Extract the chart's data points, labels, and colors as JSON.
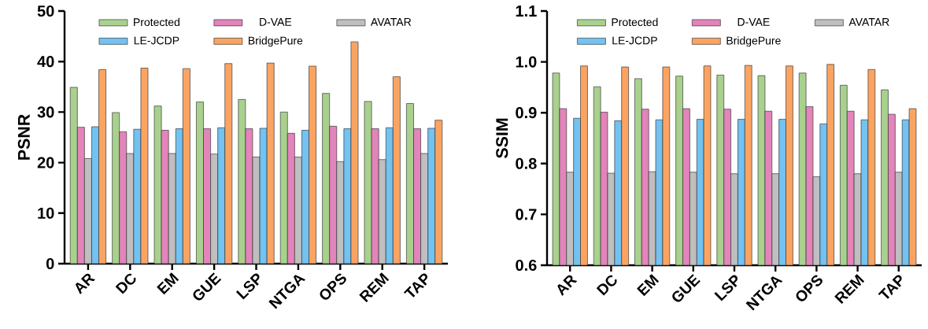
{
  "chart_data": [
    {
      "type": "bar",
      "ylabel": "PSNR",
      "categories": [
        "AR",
        "DC",
        "EM",
        "GUE",
        "LSP",
        "NTGA",
        "OPS",
        "REM",
        "TAP"
      ],
      "ylim": [
        0,
        50
      ],
      "yticks": [
        0,
        10,
        20,
        30,
        40,
        50
      ],
      "legend": "top",
      "series": [
        {
          "name": "Protected",
          "color": "#a9d18e",
          "values": [
            34.9,
            29.9,
            31.2,
            32.0,
            32.5,
            30.0,
            33.7,
            32.1,
            31.7
          ]
        },
        {
          "name": "D-VAE",
          "color": "#e384bb",
          "values": [
            27.0,
            26.1,
            26.4,
            26.7,
            26.7,
            25.8,
            27.2,
            26.7,
            26.7
          ]
        },
        {
          "name": "AVATAR",
          "color": "#bfbfbf",
          "values": [
            20.8,
            21.8,
            21.8,
            21.7,
            21.1,
            21.1,
            20.2,
            20.6,
            21.8
          ]
        },
        {
          "name": "LE-JCDP",
          "color": "#72c2f2",
          "values": [
            27.1,
            26.6,
            26.7,
            26.9,
            26.8,
            26.4,
            26.7,
            26.9,
            26.8
          ]
        },
        {
          "name": "BridgePure",
          "color": "#fba462",
          "values": [
            38.4,
            38.7,
            38.6,
            39.6,
            39.7,
            39.1,
            43.9,
            37.0,
            28.4
          ]
        }
      ]
    },
    {
      "type": "bar",
      "ylabel": "SSIM",
      "categories": [
        "AR",
        "DC",
        "EM",
        "GUE",
        "LSP",
        "NTGA",
        "OPS",
        "REM",
        "TAP"
      ],
      "ylim": [
        0.6,
        1.1
      ],
      "yticks": [
        0.6,
        0.7,
        0.8,
        0.9,
        {
          "value": 1.0,
          "label": "1.0"
        },
        1.1
      ],
      "legend": "top",
      "series": [
        {
          "name": "Protected",
          "color": "#a9d18e",
          "values": [
            0.978,
            0.951,
            0.967,
            0.972,
            0.974,
            0.973,
            0.978,
            0.954,
            0.945
          ]
        },
        {
          "name": "D-VAE",
          "color": "#e384bb",
          "values": [
            0.908,
            0.901,
            0.907,
            0.908,
            0.907,
            0.903,
            0.912,
            0.903,
            0.897
          ]
        },
        {
          "name": "AVATAR",
          "color": "#bfbfbf",
          "values": [
            0.783,
            0.781,
            0.784,
            0.783,
            0.78,
            0.78,
            0.774,
            0.78,
            0.783
          ]
        },
        {
          "name": "LE-JCDP",
          "color": "#72c2f2",
          "values": [
            0.889,
            0.884,
            0.886,
            0.887,
            0.887,
            0.887,
            0.878,
            0.886,
            0.886
          ]
        },
        {
          "name": "BridgePure",
          "color": "#fba462",
          "values": [
            0.992,
            0.99,
            0.99,
            0.992,
            0.993,
            0.992,
            0.995,
            0.985,
            0.908
          ]
        }
      ]
    }
  ]
}
